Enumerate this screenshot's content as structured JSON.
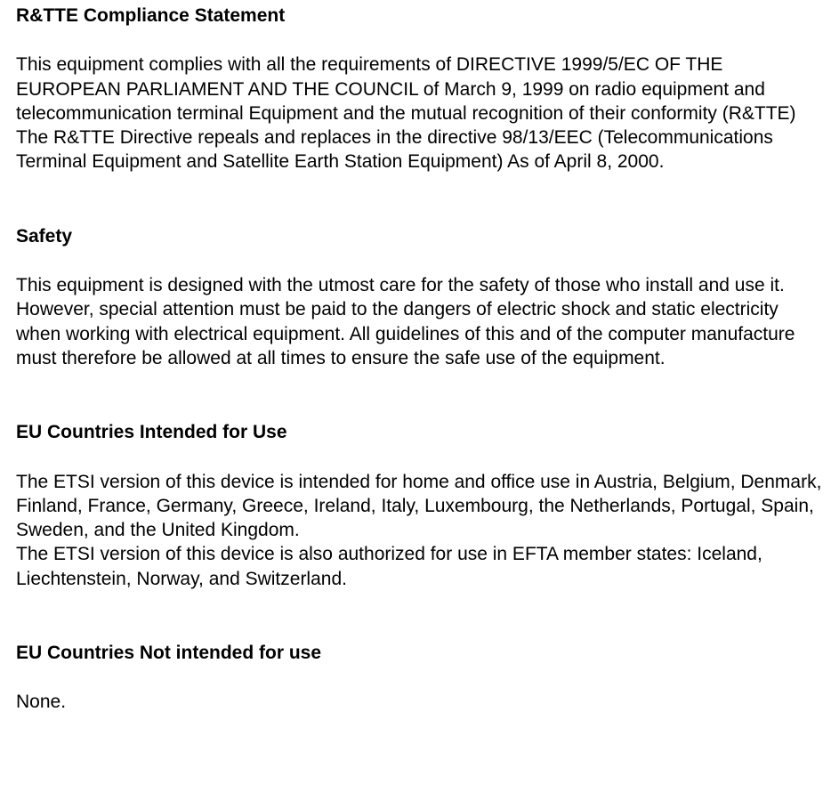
{
  "sections": [
    {
      "heading": "R&TTE Compliance Statement",
      "paragraphs": [
        "This equipment complies with all the requirements of DIRECTIVE 1999/5/EC OF THE EUROPEAN PARLIAMENT AND THE COUNCIL of March 9, 1999 on radio equipment and telecommunication terminal Equipment and the mutual recognition of their conformity (R&TTE)",
        "The R&TTE Directive repeals and replaces in the directive 98/13/EEC (Telecommunications Terminal Equipment and Satellite Earth Station Equipment) As of April 8, 2000."
      ]
    },
    {
      "heading": "Safety",
      "paragraphs": [
        "This equipment is designed with the utmost care for the safety of those who install and use it. However, special attention must be paid to the dangers of electric shock and static electricity when working with electrical equipment. All guidelines of this and of the computer manufacture must therefore be allowed at all times to ensure the safe use of the equipment."
      ]
    },
    {
      "heading": "EU Countries Intended for Use",
      "paragraphs": [
        "The ETSI version of this device is intended for home and office use in Austria, Belgium, Denmark, Finland, France, Germany, Greece, Ireland, Italy, Luxembourg, the Netherlands, Portugal, Spain, Sweden, and the United Kingdom.",
        "The ETSI version of this device is also authorized for use in EFTA member states: Iceland, Liechtenstein, Norway, and Switzerland."
      ]
    },
    {
      "heading": "EU Countries Not intended for use",
      "paragraphs": [
        "None."
      ]
    }
  ],
  "styles": {
    "heading_fontsize": 21,
    "body_fontsize": 21,
    "text_color": "#000000",
    "background_color": "#ffffff"
  }
}
